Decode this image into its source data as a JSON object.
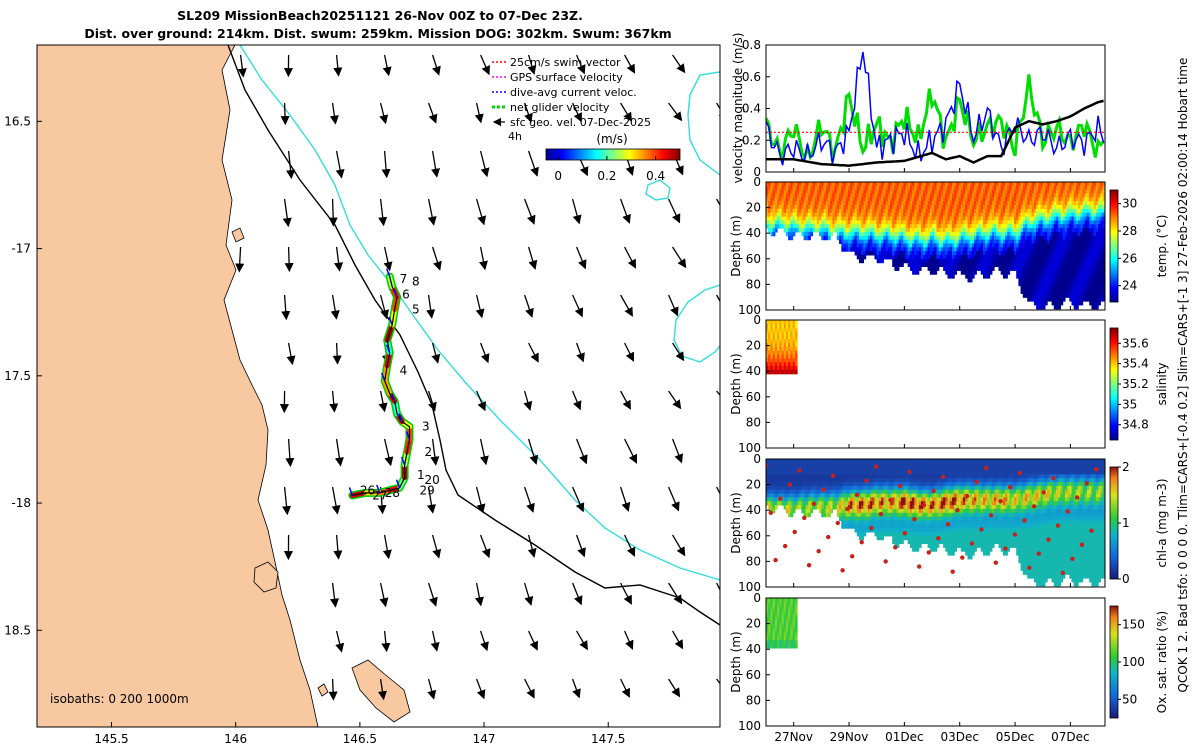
{
  "title": {
    "line1": "SL209 MissionBeach20251121 26-Nov 00Z to 07-Dec 23Z.",
    "line2": "Dist. over ground: 214km. Dist. swum: 259km. Mission DOG: 302km. Swum: 367km"
  },
  "side_note": "QCOK 1 2. Bad tsfo: 0 0 0 0. Tlim=CARS+[-0.4 0.2] Slim=CARS+[-1 3] 27-Feb-2026 02:00:14 Hobart time",
  "colors": {
    "land": "#f8c8a0",
    "isobath_200": "#000000",
    "isobath_1000": "#33dddd",
    "glider_track": "#000000"
  },
  "chart_data": [
    {
      "type": "map",
      "name": "glider-track-map",
      "xlim": [
        145.2,
        147.95
      ],
      "ylim": [
        -18.88,
        -16.2
      ],
      "x_ticks": [
        145.5,
        146,
        146.5,
        147,
        147.5
      ],
      "x_tick_labels": [
        "145.5",
        "146",
        "146.5",
        "147",
        "147.5"
      ],
      "y_ticks": [
        -16.5,
        -17,
        -17.5,
        -18,
        -18.5
      ],
      "y_tick_labels": [
        "16.5",
        "-17",
        "17.5",
        "-18",
        "18.5"
      ],
      "isobath_note": "isobaths: 0   200  1000m",
      "legend": [
        {
          "label": "25cm/s swim vector",
          "color": "#ff0000",
          "style": "dashed"
        },
        {
          "label": "GPS surface velocity",
          "color": "#ff00ff",
          "style": "dashed"
        },
        {
          "label": "dive-avg current veloc.",
          "color": "#0000ff",
          "style": "dashed"
        },
        {
          "label": "net glider velocity",
          "color": "#00dd00",
          "style": "dashed"
        },
        {
          "label": "sfc geo. vel. 07-Dec-2025",
          "color": "#000000",
          "style": "arrow"
        }
      ],
      "legend_aside": "4h",
      "colorbar": {
        "label": "(m/s)",
        "ticks": [
          0,
          0.2,
          0.4
        ],
        "tick_labels": [
          "0",
          "0.2",
          "0.4"
        ],
        "range": [
          -0.05,
          0.5
        ]
      },
      "track": [
        [
          146.47,
          -17.97
        ],
        [
          146.52,
          -17.96
        ],
        [
          146.58,
          -17.96
        ],
        [
          146.62,
          -17.95
        ],
        [
          146.66,
          -17.94
        ],
        [
          146.68,
          -17.9
        ],
        [
          146.68,
          -17.85
        ],
        [
          146.69,
          -17.8
        ],
        [
          146.7,
          -17.75
        ],
        [
          146.7,
          -17.7
        ],
        [
          146.67,
          -17.68
        ],
        [
          146.65,
          -17.65
        ],
        [
          146.64,
          -17.6
        ],
        [
          146.62,
          -17.57
        ],
        [
          146.6,
          -17.52
        ],
        [
          146.61,
          -17.46
        ],
        [
          146.62,
          -17.41
        ],
        [
          146.61,
          -17.36
        ],
        [
          146.63,
          -17.3
        ],
        [
          146.64,
          -17.24
        ],
        [
          146.65,
          -17.19
        ],
        [
          146.63,
          -17.15
        ],
        [
          146.62,
          -17.11
        ]
      ],
      "day_labels": [
        {
          "text": "8",
          "lon": 146.71,
          "lat": -17.13
        },
        {
          "text": "7",
          "lon": 146.66,
          "lat": -17.12
        },
        {
          "text": "6",
          "lon": 146.67,
          "lat": -17.18
        },
        {
          "text": "5",
          "lon": 146.71,
          "lat": -17.24
        },
        {
          "text": "4",
          "lon": 146.66,
          "lat": -17.48
        },
        {
          "text": "3",
          "lon": 146.75,
          "lat": -17.7
        },
        {
          "text": "2",
          "lon": 146.76,
          "lat": -17.8
        },
        {
          "text": "1",
          "lon": 146.73,
          "lat": -17.89
        },
        {
          "text": "20",
          "lon": 146.76,
          "lat": -17.91
        },
        {
          "text": "29",
          "lon": 146.74,
          "lat": -17.95
        },
        {
          "text": "26",
          "lon": 146.5,
          "lat": -17.95
        },
        {
          "text": "27",
          "lon": 146.55,
          "lat": -17.97
        },
        {
          "text": "28",
          "lon": 146.6,
          "lat": -17.96
        }
      ]
    },
    {
      "type": "line",
      "name": "velocity-magnitude",
      "ylabel": "velocity magnitude (m/s)",
      "ylim": [
        0,
        0.8
      ],
      "y_ticks": [
        0,
        0.2,
        0.4,
        0.6,
        0.8
      ],
      "y_tick_labels": [
        "0",
        "0.2",
        "0.4",
        "0.6",
        "0.8"
      ],
      "x_range_days": [
        0,
        12.25
      ],
      "series": [
        {
          "name": "net glider velocity",
          "color": "#00dd00",
          "x": [
            0,
            0.5,
            1,
            1.5,
            2,
            2.5,
            3,
            3.5,
            4,
            4.5,
            5,
            5.5,
            6,
            6.5,
            7,
            7.5,
            8,
            8.5,
            9,
            9.5,
            10,
            10.5,
            11,
            11.5,
            12,
            12.25
          ],
          "values": [
            0.3,
            0.12,
            0.28,
            0.08,
            0.3,
            0.12,
            0.48,
            0.15,
            0.3,
            0.18,
            0.35,
            0.2,
            0.5,
            0.18,
            0.45,
            0.2,
            0.28,
            0.32,
            0.15,
            0.55,
            0.2,
            0.28,
            0.18,
            0.3,
            0.12,
            0.25
          ]
        },
        {
          "name": "dive-avg current veloc.",
          "color": "#0000ff",
          "x": [
            0,
            0.5,
            1,
            1.5,
            2,
            2.5,
            3,
            3.5,
            4,
            4.5,
            5,
            5.5,
            6,
            6.5,
            7,
            7.5,
            8,
            8.5,
            9,
            9.5,
            10,
            10.5,
            11,
            11.5,
            12,
            12.25
          ],
          "values": [
            0.28,
            0.1,
            0.15,
            0.1,
            0.2,
            0.12,
            0.25,
            0.78,
            0.15,
            0.2,
            0.25,
            0.1,
            0.2,
            0.3,
            0.55,
            0.22,
            0.38,
            0.15,
            0.3,
            0.2,
            0.25,
            0.15,
            0.22,
            0.18,
            0.28,
            0.2
          ]
        },
        {
          "name": "25cm/s swim vector",
          "color": "#ff0000",
          "style": "dashed",
          "x": [
            0,
            12.25
          ],
          "values": [
            0.25,
            0.25
          ]
        },
        {
          "name": "surface/other speed",
          "color": "#000000",
          "x": [
            0,
            1,
            2,
            3,
            4,
            5,
            6,
            6.5,
            7,
            7.5,
            8,
            8.5,
            9,
            9.5,
            10,
            10.5,
            11,
            11.5,
            12,
            12.25
          ],
          "values": [
            0.08,
            0.08,
            0.05,
            0.04,
            0.06,
            0.07,
            0.12,
            0.08,
            0.1,
            0.06,
            0.1,
            0.1,
            0.28,
            0.32,
            0.3,
            0.32,
            0.35,
            0.4,
            0.44,
            0.45
          ]
        }
      ]
    },
    {
      "type": "heatmap",
      "name": "temperature-section",
      "ylabel": "Depth (m)",
      "colorbar_label": "temp. (°C)",
      "colorbar_ticks": [
        24,
        26,
        28,
        30
      ],
      "color_range": [
        22.8,
        31
      ],
      "y_ticks": [
        0,
        20,
        40,
        60,
        80,
        100
      ],
      "y_tick_labels": [
        "0",
        "20",
        "40",
        "60",
        "80",
        "100"
      ],
      "ylim": [
        0,
        100
      ],
      "x_range_days": [
        0,
        12.25
      ],
      "profile_days": [
        0,
        0.5,
        1,
        1.5,
        2,
        2.5,
        3,
        3.5,
        4,
        4.5,
        5,
        5.5,
        6,
        6.5,
        7,
        7.5,
        8,
        8.5,
        9,
        9.5,
        10,
        10.5,
        11,
        11.5,
        12
      ],
      "max_depth": [
        35,
        38,
        40,
        40,
        40,
        42,
        55,
        58,
        58,
        62,
        65,
        67,
        68,
        70,
        72,
        72,
        70,
        68,
        72,
        95,
        95,
        95,
        92,
        95,
        95
      ],
      "thermocline_depth": [
        32,
        32,
        34,
        35,
        35,
        38,
        38,
        38,
        40,
        40,
        42,
        44,
        42,
        45,
        42,
        40,
        38,
        38,
        38,
        30,
        28,
        25,
        24,
        22,
        22
      ],
      "surface_temp": 29.2,
      "deep_temp": 23.4
    },
    {
      "type": "heatmap",
      "name": "salinity-section",
      "ylabel": "Depth (m)",
      "colorbar_label": "salinity",
      "colorbar_ticks": [
        34.8,
        35,
        35.2,
        35.4,
        35.6
      ],
      "color_range": [
        34.65,
        35.75
      ],
      "y_ticks": [
        0,
        20,
        40,
        60,
        80,
        100
      ],
      "y_tick_labels": [
        "0",
        "20",
        "40",
        "60",
        "80",
        "100"
      ],
      "ylim": [
        0,
        100
      ],
      "x_range_days": [
        0,
        12.25
      ],
      "data_day_range": [
        0,
        1.1
      ],
      "max_depth": 40,
      "surface_value": 35.4,
      "bottom_value": 35.7
    },
    {
      "type": "heatmap",
      "name": "chlorophyll-section",
      "ylabel": "Depth (m)",
      "colorbar_label": "chl-a (mg m-3)",
      "colorbar_ticks": [
        0,
        1,
        2
      ],
      "color_range": [
        0,
        2
      ],
      "y_ticks": [
        0,
        20,
        40,
        60,
        80,
        100
      ],
      "y_tick_labels": [
        "0",
        "20",
        "40",
        "60",
        "80",
        "100"
      ],
      "ylim": [
        0,
        100
      ],
      "x_range_days": [
        0,
        12.25
      ],
      "profile_days": [
        0,
        0.5,
        1,
        1.5,
        2,
        2.5,
        3,
        3.5,
        4,
        4.5,
        5,
        5.5,
        6,
        6.5,
        7,
        7.5,
        8,
        8.5,
        9,
        9.5,
        10,
        10.5,
        11,
        11.5,
        12
      ],
      "max_depth": [
        35,
        38,
        40,
        40,
        40,
        42,
        55,
        58,
        58,
        62,
        65,
        67,
        68,
        70,
        72,
        72,
        70,
        68,
        72,
        95,
        95,
        95,
        92,
        95,
        95
      ],
      "dcm_depth": [
        38,
        38,
        38,
        36,
        36,
        36,
        34,
        34,
        32,
        32,
        32,
        34,
        34,
        32,
        30,
        30,
        30,
        30,
        30,
        28,
        26,
        24,
        24,
        24,
        24
      ],
      "dcm_value": [
        1.3,
        1.3,
        1.2,
        1.1,
        1.2,
        1.2,
        1.6,
        1.7,
        1.6,
        1.5,
        1.8,
        1.7,
        1.6,
        1.8,
        1.6,
        1.5,
        1.4,
        1.5,
        1.3,
        1.4,
        1.3,
        1.2,
        1.2,
        1.1,
        1.1
      ]
    },
    {
      "type": "heatmap",
      "name": "oxygen-section",
      "ylabel": "Depth (m)",
      "colorbar_label": "Ox. sat. ratio (%)",
      "colorbar_ticks": [
        50,
        100,
        150
      ],
      "color_range": [
        25,
        175
      ],
      "y_ticks": [
        0,
        20,
        40,
        60,
        80,
        100
      ],
      "y_tick_labels": [
        "0",
        "20",
        "40",
        "60",
        "80",
        "100"
      ],
      "ylim": [
        0,
        100
      ],
      "x_range_days": [
        0,
        12.25
      ],
      "data_day_range": [
        0,
        1.1
      ],
      "max_depth": 38,
      "typical_value": 112
    },
    {
      "type": "axis",
      "name": "time-axis",
      "x_ticks_days": [
        1,
        3,
        5,
        7,
        9,
        11
      ],
      "x_tick_labels": [
        "27Nov",
        "29Nov",
        "01Dec",
        "03Dec",
        "05Dec",
        "07Dec"
      ]
    }
  ]
}
